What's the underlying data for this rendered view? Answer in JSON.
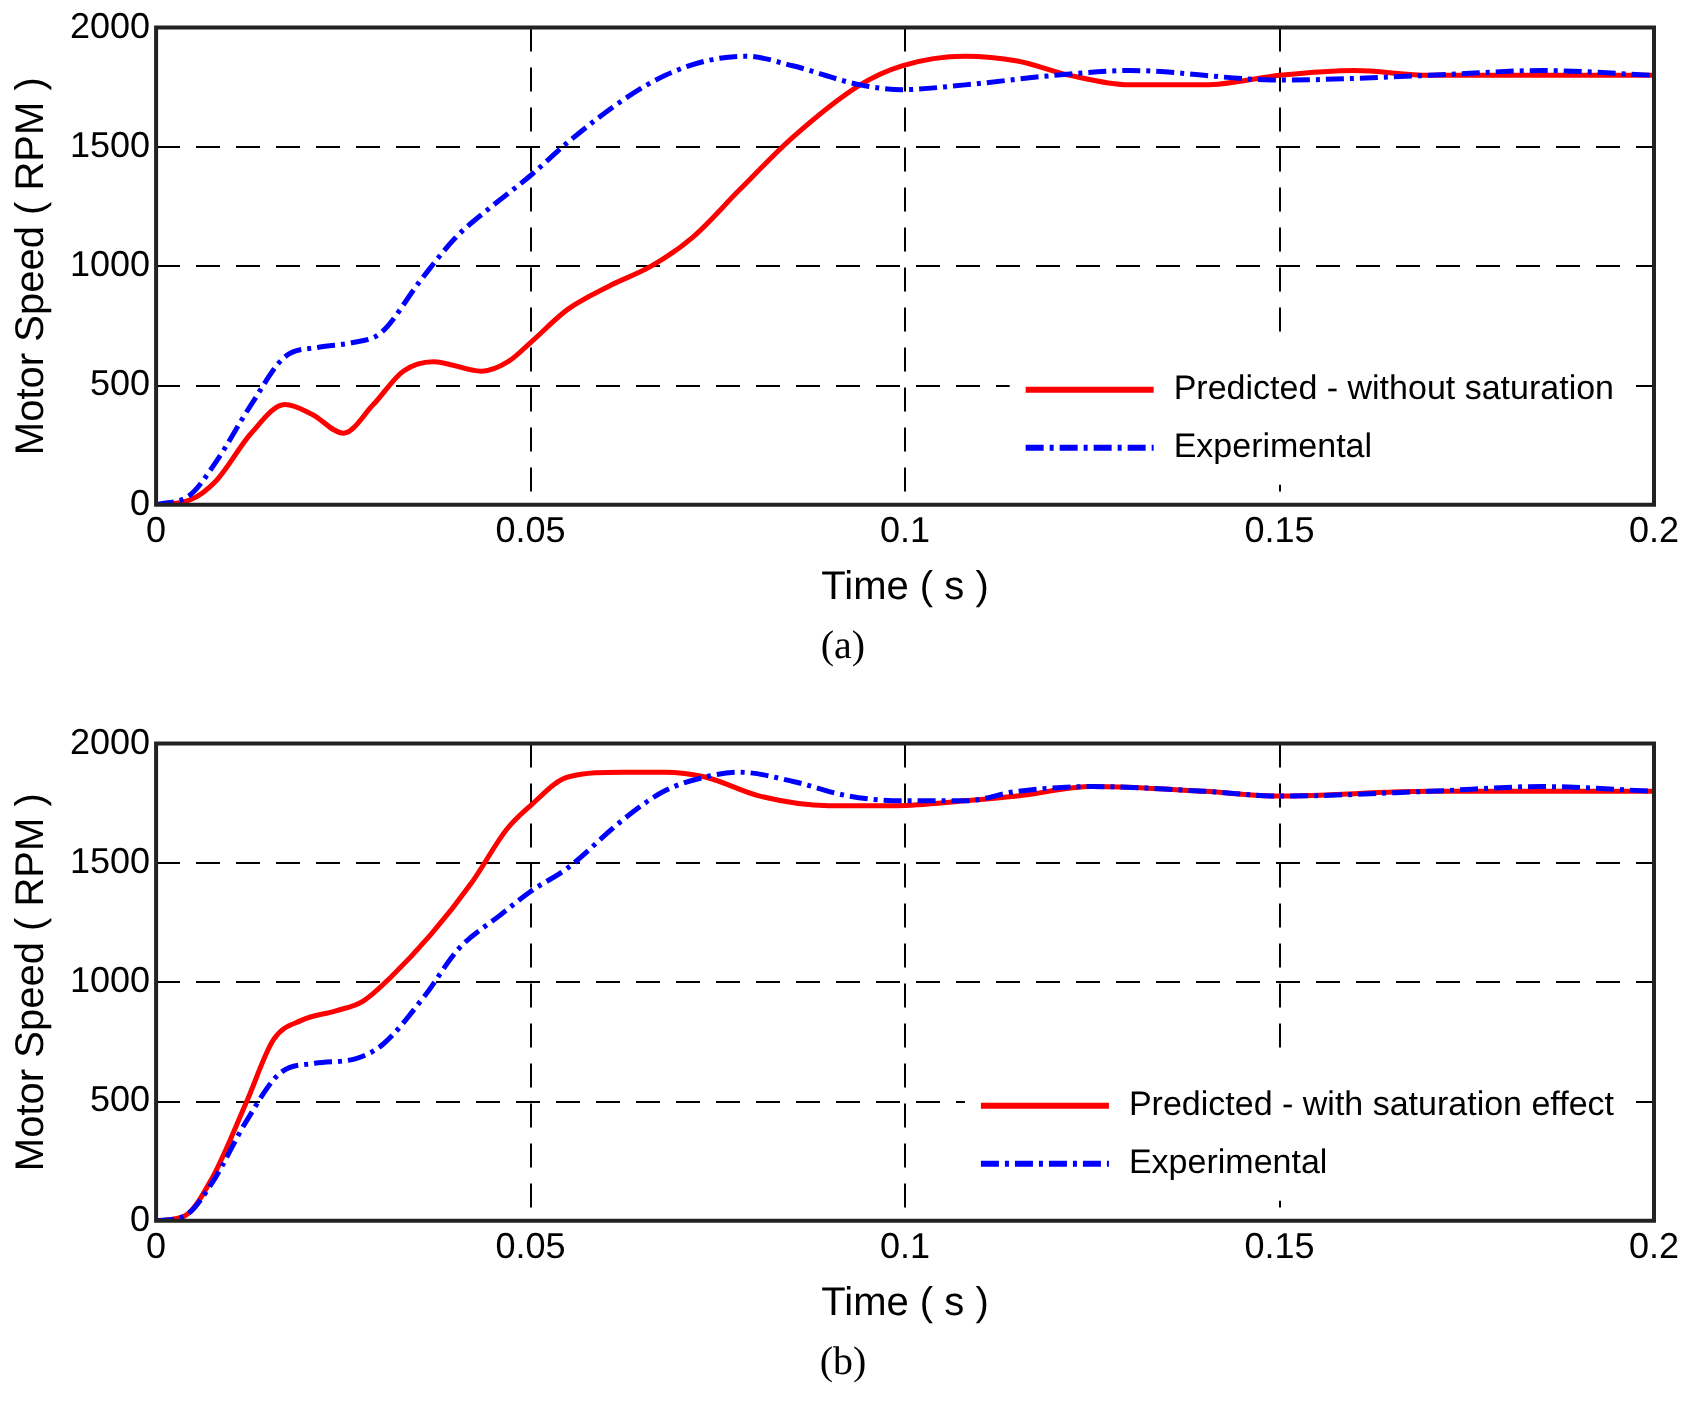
{
  "chart_data": [
    {
      "type": "line",
      "xlabel": "Time ( s )",
      "ylabel": "Motor Speed ( RPM )",
      "annotations": [
        "(a)"
      ],
      "xlim": [
        0,
        0.2
      ],
      "xticks": [
        0,
        0.05,
        0.1,
        0.15,
        0.2
      ],
      "ylim": [
        0,
        2000
      ],
      "yticks": [
        0,
        500,
        1000,
        1500,
        2000
      ],
      "grid": true,
      "legend": "bottom right",
      "marker": "none",
      "series": [
        {
          "name": "Predicted - without saturation",
          "color": "#ff0000",
          "line_style": "solid",
          "x": [
            0,
            0.0045,
            0.008,
            0.0127,
            0.0172,
            0.0208,
            0.025,
            0.029,
            0.033,
            0.037,
            0.0435,
            0.047,
            0.05,
            0.055,
            0.0607,
            0.0661,
            0.0716,
            0.0779,
            0.085,
            0.094,
            0.0996,
            0.108,
            0.115,
            0.122,
            0.13,
            0.14,
            0.15,
            0.16,
            0.17,
            0.18,
            0.2
          ],
          "values": [
            0,
            20,
            100,
            300,
            420,
            380,
            300,
            420,
            560,
            600,
            560,
            600,
            680,
            820,
            920,
            1000,
            1120,
            1320,
            1540,
            1760,
            1840,
            1880,
            1860,
            1800,
            1760,
            1760,
            1800,
            1820,
            1800,
            1800,
            1800
          ]
        },
        {
          "name": "Experimental",
          "color": "#0000ff",
          "line_style": "dashed",
          "x": [
            0,
            0.0045,
            0.008,
            0.0127,
            0.0172,
            0.0217,
            0.0263,
            0.03,
            0.0353,
            0.04,
            0.0444,
            0.05,
            0.055,
            0.0625,
            0.068,
            0.0734,
            0.0788,
            0.085,
            0.094,
            0.0996,
            0.108,
            0.12,
            0.13,
            0.15,
            0.17,
            0.185,
            0.2
          ],
          "values": [
            0,
            40,
            180,
            420,
            620,
            660,
            680,
            720,
            940,
            1120,
            1240,
            1380,
            1520,
            1700,
            1800,
            1860,
            1880,
            1840,
            1760,
            1740,
            1760,
            1800,
            1820,
            1780,
            1800,
            1820,
            1800
          ]
        }
      ]
    },
    {
      "type": "line",
      "xlabel": "Time ( s )",
      "ylabel": "Motor Speed ( RPM )",
      "annotations": [
        "(b)"
      ],
      "xlim": [
        0,
        0.2
      ],
      "xticks": [
        0,
        0.05,
        0.1,
        0.15,
        0.2
      ],
      "ylim": [
        0,
        2000
      ],
      "yticks": [
        0,
        500,
        1000,
        1500,
        2000
      ],
      "grid": true,
      "legend": "bottom right",
      "marker": "none",
      "series": [
        {
          "name": "Predicted - with saturation effect",
          "color": "#ff0000",
          "line_style": "solid",
          "x": [
            0,
            0.0038,
            0.0075,
            0.0121,
            0.0157,
            0.0194,
            0.024,
            0.0276,
            0.0313,
            0.0367,
            0.0422,
            0.0468,
            0.05,
            0.055,
            0.0623,
            0.0678,
            0.0733,
            0.0806,
            0.0898,
            0.0989,
            0.108,
            0.115,
            0.125,
            0.14,
            0.15,
            0.17,
            0.185,
            0.2
          ],
          "values": [
            0,
            20,
            180,
            500,
            760,
            840,
            880,
            920,
            1020,
            1200,
            1420,
            1640,
            1740,
            1860,
            1880,
            1880,
            1860,
            1780,
            1740,
            1740,
            1760,
            1780,
            1820,
            1800,
            1780,
            1800,
            1800,
            1800
          ]
        },
        {
          "name": "Experimental",
          "color": "#0000ff",
          "line_style": "dashed",
          "x": [
            0,
            0.0038,
            0.0075,
            0.0121,
            0.0166,
            0.0212,
            0.0267,
            0.0303,
            0.0358,
            0.0404,
            0.0459,
            0.05,
            0.055,
            0.0623,
            0.0678,
            0.0733,
            0.0779,
            0.0852,
            0.0925,
            0.0998,
            0.108,
            0.115,
            0.125,
            0.14,
            0.15,
            0.17,
            0.185,
            0.2
          ],
          "values": [
            0,
            20,
            160,
            420,
            620,
            660,
            680,
            740,
            940,
            1140,
            1280,
            1380,
            1480,
            1680,
            1800,
            1860,
            1880,
            1840,
            1780,
            1760,
            1760,
            1800,
            1820,
            1800,
            1780,
            1800,
            1820,
            1800
          ]
        }
      ]
    }
  ]
}
